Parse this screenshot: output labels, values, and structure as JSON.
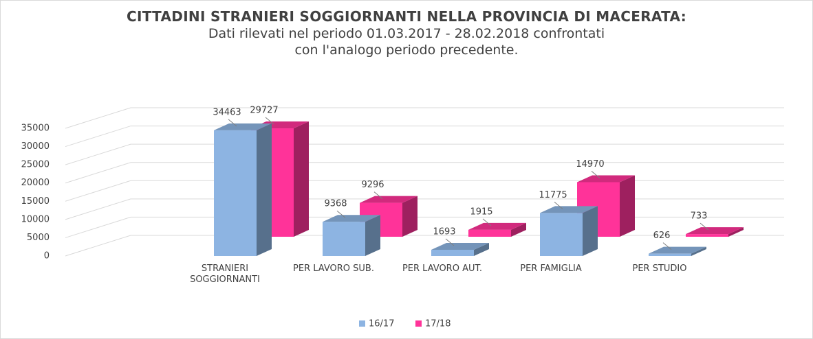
{
  "chart_data": {
    "type": "bar3d",
    "title": "CITTADINI STRANIERI SOGGIORNANTI NELLA PROVINCIA DI MACERATA:",
    "subtitle": "Dati rilevati nel periodo 01.03.2017 - 28.02.2018 confrontati con l'analogo periodo precedente.",
    "categories": [
      "STRANIERI SOGGIORNANTI",
      "PER LAVORO SUB.",
      "PER LAVORO AUT.",
      "PER FAMIGLIA",
      "PER STUDIO"
    ],
    "series": [
      {
        "name": "16/17",
        "color": "#8db4e2",
        "values": [
          34463,
          9368,
          1693,
          11775,
          626
        ]
      },
      {
        "name": "17/18",
        "color": "#ff3399",
        "values": [
          29727,
          9296,
          1915,
          14970,
          733
        ]
      }
    ],
    "ylim": [
      0,
      35000
    ],
    "yticks": [
      0,
      5000,
      10000,
      15000,
      20000,
      25000,
      30000,
      35000
    ],
    "grid": true
  }
}
